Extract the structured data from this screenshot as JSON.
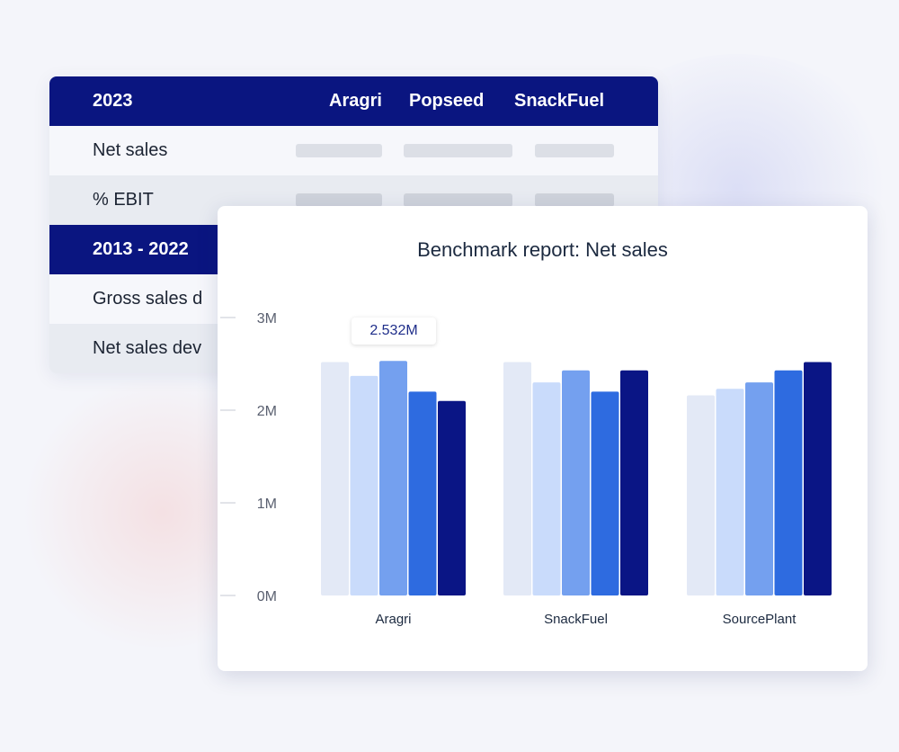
{
  "table": {
    "header_2023": {
      "label": "2023",
      "columns": [
        "Aragri",
        "Popseed",
        "SnackFuel"
      ]
    },
    "rows_2023": [
      {
        "label": "Net sales"
      },
      {
        "label": "%  EBIT"
      }
    ],
    "header_range": {
      "label": "2013 - 2022"
    },
    "rows_range": [
      {
        "label": "Gross sales d"
      },
      {
        "label": "Net sales dev"
      }
    ]
  },
  "colors": {
    "navy": "#0a1580",
    "series": [
      "#e3e9f6",
      "#c9dbfb",
      "#74a0ef",
      "#2e6be0",
      "#0a1585"
    ]
  },
  "chart_data": {
    "type": "bar",
    "title": "Benchmark report: Net sales",
    "categories": [
      "Aragri",
      "SnackFuel",
      "SourcePlant"
    ],
    "series": [
      {
        "values": [
          2.52,
          2.52,
          2.16
        ]
      },
      {
        "values": [
          2.37,
          2.3,
          2.23
        ]
      },
      {
        "values": [
          2.532,
          2.43,
          2.3
        ]
      },
      {
        "values": [
          2.2,
          2.2,
          2.43
        ]
      },
      {
        "values": [
          2.1,
          2.43,
          2.52
        ]
      }
    ],
    "yticks": [
      "0M",
      "1M",
      "2M",
      "3M"
    ],
    "ylim": [
      0,
      3
    ],
    "unit": "M",
    "grid": false,
    "tooltip": "2.532M"
  }
}
